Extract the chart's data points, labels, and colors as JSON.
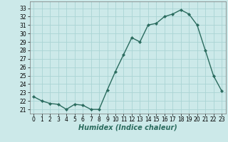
{
  "x": [
    0,
    1,
    2,
    3,
    4,
    5,
    6,
    7,
    8,
    9,
    10,
    11,
    12,
    13,
    14,
    15,
    16,
    17,
    18,
    19,
    20,
    21,
    22,
    23
  ],
  "y": [
    22.5,
    22.0,
    21.7,
    21.6,
    21.0,
    21.6,
    21.5,
    21.0,
    21.0,
    23.3,
    25.5,
    27.5,
    29.5,
    29.0,
    31.0,
    31.2,
    32.0,
    32.3,
    32.8,
    32.3,
    31.0,
    28.0,
    25.0,
    23.2
  ],
  "line_color": "#2a6b5e",
  "marker": "D",
  "marker_size": 2.2,
  "bg_color": "#cce9e9",
  "grid_color": "#aad4d4",
  "xlabel": "Humidex (Indice chaleur)",
  "xlim": [
    -0.5,
    23.5
  ],
  "ylim": [
    20.5,
    33.8
  ],
  "yticks": [
    21,
    22,
    23,
    24,
    25,
    26,
    27,
    28,
    29,
    30,
    31,
    32,
    33
  ],
  "xticks": [
    0,
    1,
    2,
    3,
    4,
    5,
    6,
    7,
    8,
    9,
    10,
    11,
    12,
    13,
    14,
    15,
    16,
    17,
    18,
    19,
    20,
    21,
    22,
    23
  ],
  "xlabel_fontsize": 7,
  "tick_fontsize": 5.5,
  "line_width": 1.0
}
